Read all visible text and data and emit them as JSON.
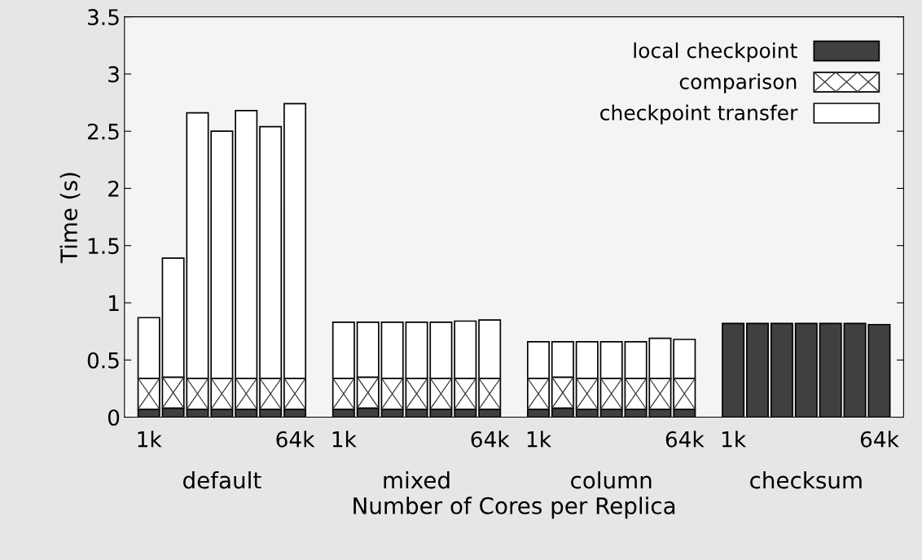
{
  "chart_data": {
    "type": "bar",
    "stacked": true,
    "xlabel": "Number of Cores per Replica",
    "ylabel": "Time (s)",
    "categories": [
      "1k",
      null,
      null,
      null,
      null,
      null,
      "64k",
      null,
      "1k",
      null,
      null,
      null,
      null,
      null,
      "64k",
      null,
      "1k",
      null,
      null,
      null,
      null,
      null,
      "64k",
      null,
      "1k",
      null,
      null,
      null,
      null,
      null,
      "64k"
    ],
    "series": [
      {
        "name": "local checkpoint",
        "color": "#404040",
        "values": [
          0.07,
          0.08,
          0.07,
          0.07,
          0.07,
          0.07,
          0.07,
          null,
          0.07,
          0.08,
          0.07,
          0.07,
          0.07,
          0.07,
          0.07,
          null,
          0.07,
          0.08,
          0.07,
          0.07,
          0.07,
          0.07,
          0.07,
          null,
          0.82,
          0.82,
          0.82,
          0.82,
          0.82,
          0.82,
          0.81
        ]
      },
      {
        "name": "comparison",
        "color": "#ffffff",
        "values": [
          0.27,
          0.27,
          0.27,
          0.27,
          0.27,
          0.27,
          0.27,
          null,
          0.27,
          0.27,
          0.27,
          0.27,
          0.27,
          0.27,
          0.27,
          null,
          0.27,
          0.27,
          0.27,
          0.27,
          0.27,
          0.27,
          0.27,
          null,
          null,
          null,
          null,
          null,
          null,
          null,
          null
        ]
      },
      {
        "name": "checkpoint transfer",
        "color": "#ffffff",
        "values": [
          0.53,
          1.04,
          2.32,
          2.16,
          2.34,
          2.2,
          2.4,
          null,
          0.49,
          0.48,
          0.49,
          0.49,
          0.49,
          0.5,
          0.51,
          null,
          0.32,
          0.31,
          0.32,
          0.32,
          0.32,
          0.35,
          0.34,
          null,
          null,
          null,
          null,
          null,
          null,
          null,
          null
        ]
      }
    ],
    "annotations": [
      "default",
      "mixed",
      "column",
      "checksum"
    ],
    "ylim": [
      0,
      3.5
    ],
    "yticks": [
      0,
      0.5,
      1,
      1.5,
      2,
      2.5,
      3,
      3.5
    ],
    "legend": "top right",
    "grid": false
  }
}
